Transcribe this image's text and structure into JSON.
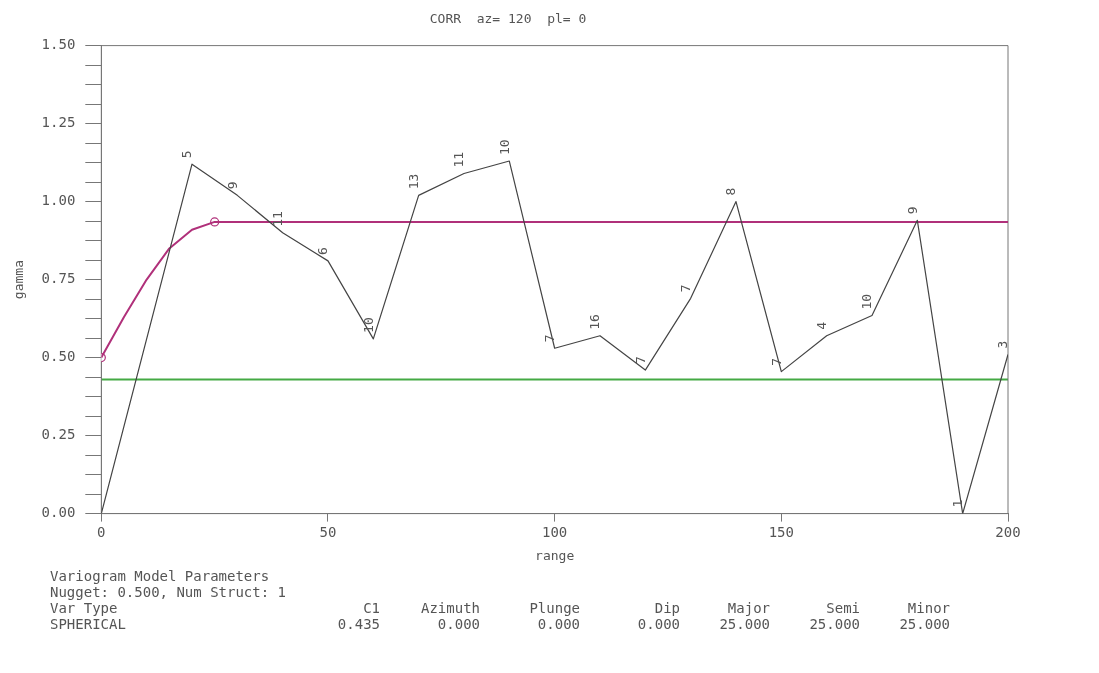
{
  "chart_data": {
    "type": "line",
    "title": "CORR  az= 120  pl= 0",
    "xlabel": "range",
    "ylabel": "gamma",
    "xlim": [
      0,
      200
    ],
    "xticks": [
      0,
      50,
      100,
      150,
      200
    ],
    "ylim": [
      0,
      1.5
    ],
    "yticks": [
      {
        "value": 0,
        "label": "0.00"
      },
      {
        "value": 0.0625,
        "label": null
      },
      {
        "value": 0.125,
        "label": null
      },
      {
        "value": 0.1875,
        "label": null
      },
      {
        "value": 0.25,
        "label": "0.25"
      },
      {
        "value": 0.3125,
        "label": null
      },
      {
        "value": 0.375,
        "label": null
      },
      {
        "value": 0.4375,
        "label": null
      },
      {
        "value": 0.5,
        "label": "0.50"
      },
      {
        "value": 0.5625,
        "label": null
      },
      {
        "value": 0.625,
        "label": null
      },
      {
        "value": 0.6875,
        "label": null
      },
      {
        "value": 0.75,
        "label": "0.75"
      },
      {
        "value": 0.8125,
        "label": null
      },
      {
        "value": 0.875,
        "label": null
      },
      {
        "value": 0.9375,
        "label": null
      },
      {
        "value": 1,
        "label": "1.00"
      },
      {
        "value": 1.0625,
        "label": null
      },
      {
        "value": 1.125,
        "label": null
      },
      {
        "value": 1.1875,
        "label": null
      },
      {
        "value": 1.25,
        "label": "1.25"
      },
      {
        "value": 1.3125,
        "label": null
      },
      {
        "value": 1.375,
        "label": null
      },
      {
        "value": 1.4375,
        "label": null
      },
      {
        "value": 1.5,
        "label": "1.50"
      }
    ],
    "grid": false,
    "legend": false,
    "marker": "none",
    "line_style": "solid",
    "series": [
      {
        "color": "#444444",
        "x": [
          0,
          20,
          30,
          40,
          50,
          60,
          70,
          80,
          90,
          100,
          110,
          120,
          130,
          140,
          150,
          160,
          170,
          180,
          190,
          200
        ],
        "values": [
          0,
          1.12,
          1.02,
          0.9,
          0.81,
          0.56,
          1.02,
          1.09,
          1.13,
          0.53,
          0.57,
          0.46,
          0.69,
          1.0,
          0.455,
          0.57,
          0.635,
          0.94,
          0,
          0.51
        ]
      },
      {
        "color": "#b0307a",
        "x": [
          0,
          5,
          10,
          15,
          20,
          25,
          200
        ],
        "values": [
          0.5,
          0.63,
          0.75,
          0.85,
          0.91,
          0.935,
          0.935
        ]
      },
      {
        "type": "scatter",
        "color": "#b0307a",
        "marker": "circle",
        "x": [
          0,
          25
        ],
        "values": [
          0.5,
          0.935
        ]
      }
    ],
    "ref_lines": [
      {
        "axis": "y",
        "value": 0.43,
        "color": "#44aa44"
      }
    ],
    "annotations": [
      {
        "text": "5",
        "x": 20,
        "y": 1.12
      },
      {
        "text": "9",
        "x": 30,
        "y": 1.02
      },
      {
        "text": "11",
        "x": 40,
        "y": 0.9
      },
      {
        "text": "6",
        "x": 50,
        "y": 0.81
      },
      {
        "text": "10",
        "x": 60,
        "y": 0.56
      },
      {
        "text": "13",
        "x": 70,
        "y": 1.02
      },
      {
        "text": "11",
        "x": 80,
        "y": 1.09
      },
      {
        "text": "10",
        "x": 90,
        "y": 1.13
      },
      {
        "text": "7",
        "x": 100,
        "y": 0.53
      },
      {
        "text": "16",
        "x": 110,
        "y": 0.57
      },
      {
        "text": "7",
        "x": 120,
        "y": 0.46
      },
      {
        "text": "7",
        "x": 130,
        "y": 0.69
      },
      {
        "text": "8",
        "x": 140,
        "y": 1.0
      },
      {
        "text": "7",
        "x": 150,
        "y": 0.455
      },
      {
        "text": "4",
        "x": 160,
        "y": 0.57
      },
      {
        "text": "10",
        "x": 170,
        "y": 0.635
      },
      {
        "text": "9",
        "x": 180,
        "y": 0.94
      },
      {
        "text": "1",
        "x": 190,
        "y": 0
      },
      {
        "text": "3",
        "x": 200,
        "y": 0.51
      },
      "Variogram Model Parameters",
      "Nugget: 0.500, Num Struct: 1",
      "Var Type",
      "C1",
      "Azimuth",
      "Plunge",
      "Dip",
      "Major",
      "Semi",
      "Minor",
      "SPHERICAL",
      "0.435",
      "0.000",
      "0.000",
      "0.000",
      "25.000",
      "25.000",
      "25.000"
    ]
  }
}
